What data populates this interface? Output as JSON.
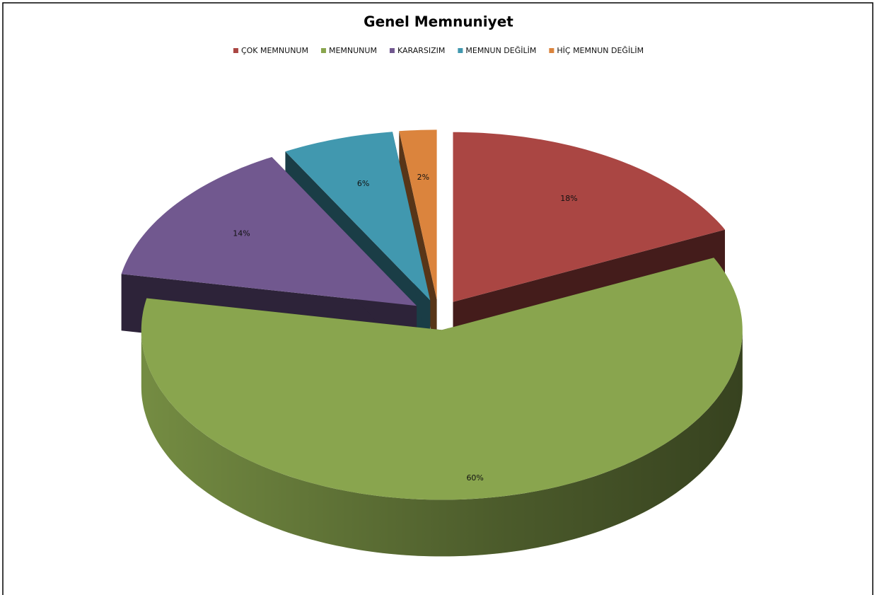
{
  "chart_data": {
    "type": "pie",
    "title": "Genel Memnuniyet",
    "categories": [
      "ÇOK MEMNUNUM",
      "MEMNUNUM",
      "KARARSIZIM",
      "MEMNUN DEĞİLİM",
      "HİÇ MEMNUN DEĞİLİM"
    ],
    "values": [
      18,
      60,
      14,
      6,
      2
    ],
    "value_labels": [
      "18%",
      "60%",
      "14%",
      "6%",
      "2%"
    ],
    "colors": [
      "#aa4643",
      "#89a54e",
      "#71588f",
      "#4198af",
      "#db843d"
    ],
    "legend": "top"
  }
}
